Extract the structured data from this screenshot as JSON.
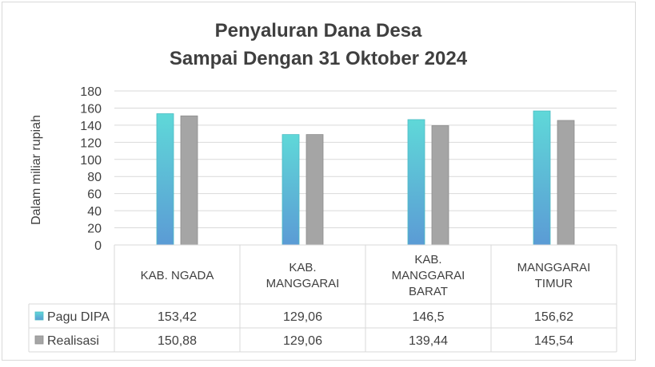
{
  "chart_data": {
    "type": "bar",
    "title": [
      "Penyaluran Dana Desa",
      "Sampai Dengan 31 Oktober 2024"
    ],
    "ylabel": "Dalam miliar rupiah",
    "ylim": [
      0,
      180
    ],
    "yticks": [
      0,
      20,
      40,
      60,
      80,
      100,
      120,
      140,
      160,
      180
    ],
    "grid": true,
    "legend_placement": "data-table",
    "categories": [
      [
        "KAB. NGADA"
      ],
      [
        "KAB.",
        "MANGGARAI"
      ],
      [
        "KAB.",
        "MANGGARAI",
        "BARAT"
      ],
      [
        "MANGGARAI",
        "TIMUR"
      ]
    ],
    "series": [
      {
        "name": "Pagu DIPA",
        "values": [
          153.42,
          129.06,
          146.5,
          156.62
        ],
        "labels": [
          "153,42",
          "129,06",
          "146,5",
          "156,62"
        ],
        "color_top": "#5fd8d8",
        "color_bottom": "#5b9bd5"
      },
      {
        "name": "Realisasi",
        "values": [
          150.88,
          129.06,
          139.44,
          145.54
        ],
        "labels": [
          "150,88",
          "129,06",
          "139,44",
          "145,54"
        ],
        "color": "#a5a5a5"
      }
    ]
  }
}
